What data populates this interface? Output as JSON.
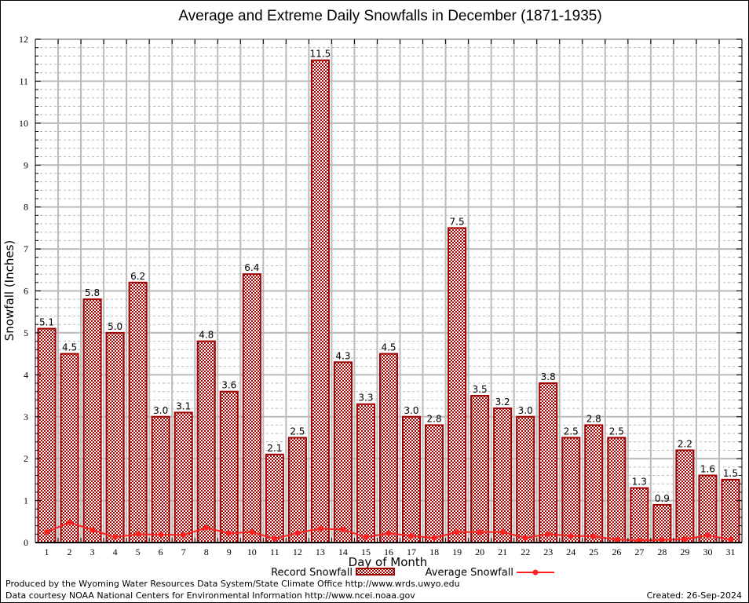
{
  "chart_data": {
    "type": "bar",
    "title": "Average and Extreme Daily Snowfalls in December (1871-1935)",
    "xlabel": "Day of Month",
    "ylabel": "Snowfall (Inches)",
    "ylim": [
      0,
      12
    ],
    "yticks": [
      0,
      1,
      2,
      3,
      4,
      5,
      6,
      7,
      8,
      9,
      10,
      11,
      12
    ],
    "minor_ytick_step": 0.2,
    "grid": true,
    "legend_position": "bottom-center",
    "categories": [
      "1",
      "2",
      "3",
      "4",
      "5",
      "6",
      "7",
      "8",
      "9",
      "10",
      "11",
      "12",
      "13",
      "14",
      "15",
      "16",
      "17",
      "18",
      "19",
      "20",
      "21",
      "22",
      "23",
      "24",
      "25",
      "26",
      "27",
      "28",
      "29",
      "30",
      "31"
    ],
    "series": [
      {
        "name": "Record Snowfall",
        "type": "bar",
        "color": "#a00000",
        "labels": [
          "5.1",
          "4.5",
          "5.8",
          "5.0",
          "6.2",
          "3.0",
          "3.1",
          "4.8",
          "3.6",
          "6.4",
          "2.1",
          "2.5",
          "11.5",
          "4.3",
          "3.3",
          "4.5",
          "3.0",
          "2.8",
          "7.5",
          "3.5",
          "3.2",
          "3.0",
          "3.8",
          "2.5",
          "2.8",
          "2.5",
          "1.3",
          "0.9",
          "2.2",
          "1.6",
          "1.5"
        ],
        "values": [
          5.1,
          4.5,
          5.8,
          5.0,
          6.2,
          3.0,
          3.1,
          4.8,
          3.6,
          6.4,
          2.1,
          2.5,
          11.5,
          4.3,
          3.3,
          4.5,
          3.0,
          2.8,
          7.5,
          3.5,
          3.2,
          3.0,
          3.8,
          2.5,
          2.8,
          2.5,
          1.3,
          0.9,
          2.2,
          1.6,
          1.5
        ]
      },
      {
        "name": "Average Snowfall",
        "type": "line",
        "color": "#ff2020",
        "values": [
          0.25,
          0.48,
          0.3,
          0.13,
          0.2,
          0.19,
          0.18,
          0.35,
          0.22,
          0.25,
          0.09,
          0.23,
          0.33,
          0.31,
          0.13,
          0.22,
          0.16,
          0.11,
          0.25,
          0.25,
          0.25,
          0.11,
          0.2,
          0.16,
          0.15,
          0.07,
          0.05,
          0.06,
          0.08,
          0.17,
          0.07
        ]
      }
    ]
  },
  "footer": {
    "produced_by": "Produced by the Wyoming Water Resources Data System/State Climate Office http://www.wrds.uwyo.edu",
    "data_courtesy": "Data courtesy NOAA National Centers for Environmental Information http://www.ncei.noaa.gov",
    "created": "Created: 26-Sep-2024"
  }
}
